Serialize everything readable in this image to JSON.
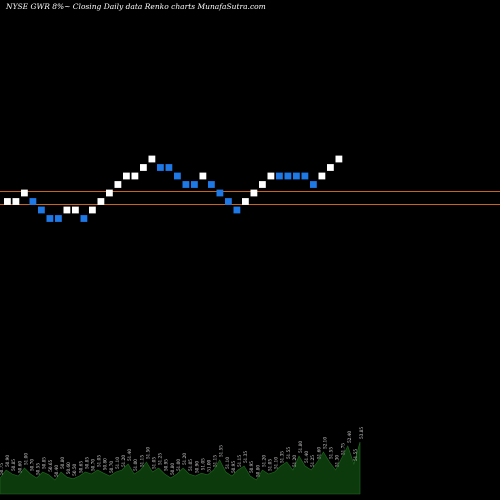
{
  "header": {
    "title": "NYSE GWR 8%~  Closing Daily data  Renko  charts MunafaSutra.com"
  },
  "colors": {
    "background": "#000000",
    "up_brick": "#ffffff",
    "down_brick": "#1e78e6",
    "reference_line": "#c8641e",
    "volume_fill": "#0d3a0d",
    "volume_edge": "#1f6b1f",
    "volume_label": "#dddddd"
  },
  "chart_data": [
    {
      "type": "renko",
      "grid": false,
      "brick_levels": [
        22,
        22,
        23,
        22,
        21,
        20,
        20,
        21,
        21,
        20,
        21,
        22,
        23,
        24,
        25,
        25,
        26,
        27,
        26,
        26,
        25,
        24,
        24,
        25,
        24,
        23,
        22,
        21,
        22,
        23,
        24,
        25,
        25,
        25,
        25,
        25,
        24,
        25,
        26,
        27
      ],
      "brick_directions": [
        "up",
        "up",
        "up",
        "down",
        "down",
        "down",
        "down",
        "up",
        "up",
        "down",
        "up",
        "up",
        "up",
        "up",
        "up",
        "up",
        "up",
        "up",
        "down",
        "down",
        "down",
        "down",
        "down",
        "up",
        "down",
        "down",
        "down",
        "down",
        "up",
        "up",
        "up",
        "up",
        "down",
        "down",
        "down",
        "down",
        "down",
        "up",
        "up",
        "up"
      ],
      "reference_lines": [
        2,
        0
      ]
    },
    {
      "type": "bar",
      "title": "",
      "values": [
        4,
        6,
        5,
        4.5,
        6.5,
        5,
        4,
        5.5,
        4.8,
        3.5,
        5.5,
        4.2,
        3.8,
        4.5,
        5.5,
        5,
        6,
        5.2,
        4.5,
        5.5,
        6,
        7.5,
        5,
        6,
        8,
        5.5,
        6.5,
        5,
        4,
        5,
        6.5,
        5,
        4.5,
        5.2,
        4.8,
        6,
        8.5,
        5.5,
        4.5,
        6,
        7,
        4.5,
        3.5,
        6,
        5,
        5.5,
        7,
        8,
        6,
        9.5,
        7,
        6,
        8,
        10.5,
        8,
        6,
        9,
        12,
        7.5,
        13
      ],
      "labels": [
        "50.75",
        "50.90",
        "50.85",
        "50.60",
        "51.00",
        "50.70",
        "50.55",
        "50.85",
        "50.65",
        "50.40",
        "50.80",
        "50.60",
        "50.50",
        "50.65",
        "50.85",
        "50.70",
        "51.05",
        "50.80",
        "50.70",
        "51.10",
        "51.20",
        "51.40",
        "51.00",
        "51.15",
        "51.50",
        "51.05",
        "51.25",
        "50.95",
        "50.80",
        "51.00",
        "51.20",
        "51.05",
        "50.90",
        "51.05",
        "51.00",
        "51.15",
        "51.55",
        "51.10",
        "50.95",
        "51.15",
        "51.35",
        "50.95",
        "50.80",
        "51.20",
        "51.05",
        "51.10",
        "51.35",
        "51.55",
        "51.20",
        "51.80",
        "51.40",
        "51.25",
        "51.60",
        "52.10",
        "51.55",
        "51.30",
        "51.75",
        "52.40",
        "51.55",
        "53.85"
      ]
    }
  ]
}
